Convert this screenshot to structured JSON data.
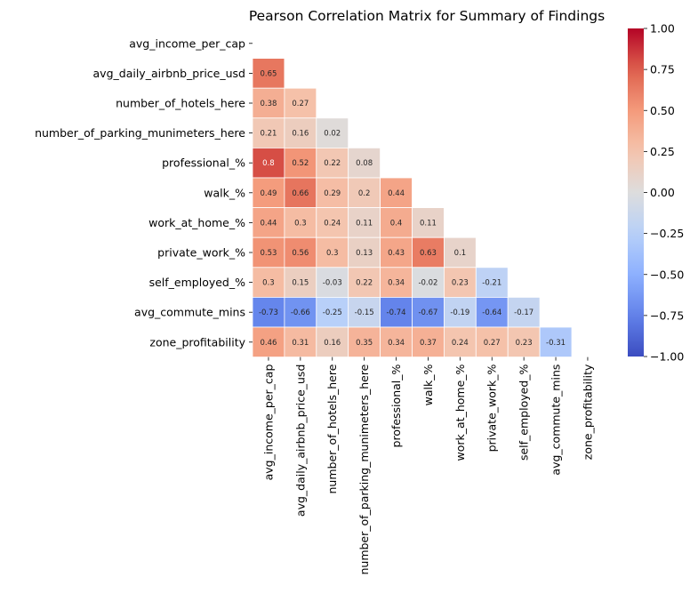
{
  "chart_data": {
    "type": "heatmap",
    "title": "Pearson Correlation Matrix for Summary of Findings",
    "labels": [
      "avg_income_per_cap",
      "avg_daily_airbnb_price_usd",
      "number_of_hotels_here",
      "number_of_parking_munimeters_here",
      "professional_%",
      "walk_%",
      "work_at_home_%",
      "private_work_%",
      "self_employed_%",
      "avg_commute_mins",
      "zone_profitability"
    ],
    "mask": "upper-triangle-including-diagonal",
    "values": [
      [],
      [
        0.65
      ],
      [
        0.38,
        0.27
      ],
      [
        0.21,
        0.16,
        0.02
      ],
      [
        0.8,
        0.52,
        0.22,
        0.08
      ],
      [
        0.49,
        0.66,
        0.29,
        0.2,
        0.44
      ],
      [
        0.44,
        0.3,
        0.24,
        0.11,
        0.4,
        0.11
      ],
      [
        0.53,
        0.56,
        0.3,
        0.13,
        0.43,
        0.63,
        0.1
      ],
      [
        0.3,
        0.15,
        -0.03,
        0.22,
        0.34,
        -0.02,
        0.23,
        -0.21
      ],
      [
        -0.73,
        -0.66,
        -0.25,
        -0.15,
        -0.74,
        -0.67,
        -0.19,
        -0.64,
        -0.17
      ],
      [
        0.46,
        0.31,
        0.16,
        0.35,
        0.34,
        0.37,
        0.24,
        0.27,
        0.23,
        -0.31
      ]
    ],
    "colormap": "coolwarm",
    "vmin": -1.0,
    "vmax": 1.0,
    "colorbar_ticks": [
      "1.00",
      "0.75",
      "0.50",
      "0.25",
      "0.00",
      "−0.25",
      "−0.50",
      "−0.75",
      "−1.00"
    ],
    "colorbar_tick_values": [
      1.0,
      0.75,
      0.5,
      0.25,
      0.0,
      -0.25,
      -0.5,
      -0.75,
      -1.0
    ]
  }
}
